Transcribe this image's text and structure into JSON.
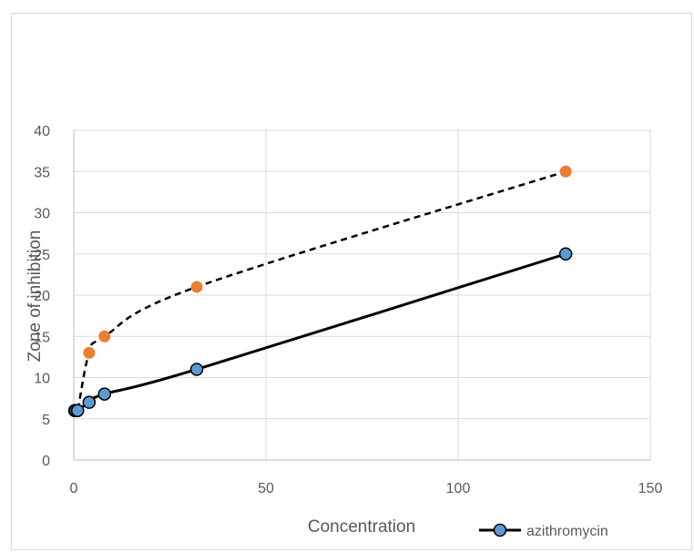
{
  "chart_data": {
    "type": "line",
    "title": "",
    "xlabel": "Concentration",
    "ylabel": "Zone of inhibition",
    "xlim": [
      0,
      150
    ],
    "ylim": [
      0,
      40
    ],
    "xticks": [
      0,
      50,
      100,
      150
    ],
    "yticks": [
      0,
      5,
      10,
      15,
      20,
      25,
      30,
      35,
      40
    ],
    "grid": true,
    "legend_position": "bottom-right",
    "series": [
      {
        "name": "azithromycin",
        "style": "solid",
        "line_color": "#000000",
        "marker_color": "#5b9bd5",
        "marker_edge": "#000000",
        "x": [
          0.25,
          0.5,
          1,
          4,
          8,
          32,
          128
        ],
        "y": [
          6,
          6,
          6,
          7,
          8,
          11,
          25
        ]
      },
      {
        "style": "dashed",
        "line_color": "#000000",
        "marker_color": "#ed7d31",
        "x": [
          0.25,
          0.5,
          1,
          4,
          8,
          32,
          128
        ],
        "y": [
          6,
          6,
          6,
          13,
          15,
          21,
          35
        ]
      }
    ]
  }
}
